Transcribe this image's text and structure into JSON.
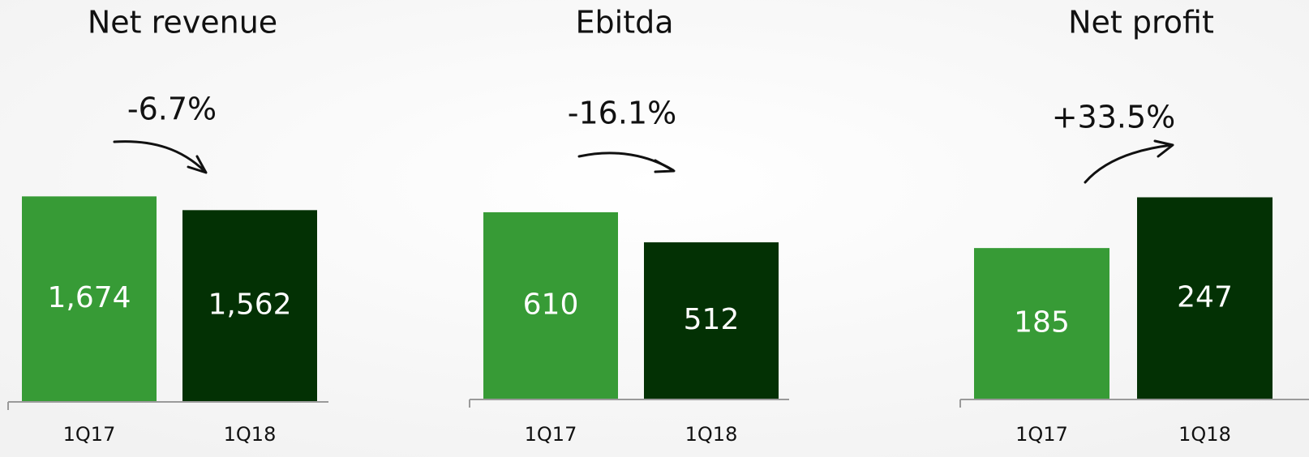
{
  "chart_data": [
    {
      "type": "bar",
      "title": "Net revenue",
      "annotation": "-6.7%",
      "categories": [
        "1Q17",
        "1Q18"
      ],
      "values": [
        1674,
        1562
      ],
      "value_labels": [
        "1,674",
        "1,562"
      ],
      "colors": [
        "#379b36",
        "#033104"
      ],
      "ylim": [
        0,
        1980
      ]
    },
    {
      "type": "bar",
      "title": "Ebitda",
      "annotation": "-16.1%",
      "categories": [
        "1Q17",
        "1Q18"
      ],
      "values": [
        610,
        512
      ],
      "colors": [
        "#379b36",
        "#033104"
      ],
      "ylim": [
        0,
        792
      ]
    },
    {
      "type": "bar",
      "title": "Net profit",
      "annotation": "+33.5%",
      "categories": [
        "1Q17",
        "1Q18"
      ],
      "values": [
        185,
        247
      ],
      "colors": [
        "#379b36",
        "#033104"
      ],
      "ylim": [
        0,
        297
      ]
    }
  ]
}
